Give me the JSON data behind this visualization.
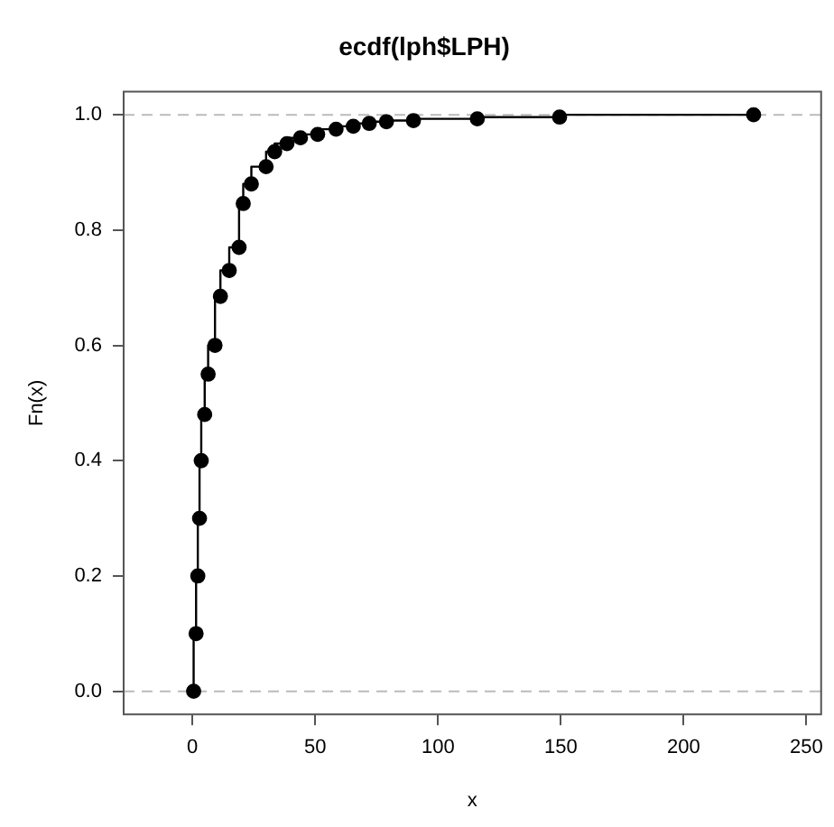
{
  "chart_data": {
    "type": "step",
    "title": "ecdf(lph$LPH)",
    "xlabel": "x",
    "ylabel": "Fn(x)",
    "xlim": [
      -28,
      256
    ],
    "xticks": [
      0,
      50,
      100,
      150,
      200,
      250
    ],
    "ylim": [
      -0.04,
      1.04
    ],
    "yticks": [
      {
        "value": 0,
        "label": "0.0"
      },
      0.2,
      0.4,
      0.6,
      0.8,
      {
        "value": 1,
        "label": "1.0"
      }
    ],
    "grid": false,
    "legend": false,
    "marker": "circle",
    "line_style": "solid",
    "ref_lines": [
      {
        "axis": "y",
        "value": 0,
        "color": "#bbbbbb",
        "line_style": "dashed"
      },
      {
        "axis": "y",
        "value": 1,
        "color": "#bbbbbb",
        "line_style": "dashed"
      }
    ],
    "series": [
      {
        "color": "#000000",
        "x": [
          0.5,
          1.5,
          2.2,
          2.9,
          3.6,
          5,
          6.4,
          9.2,
          11.4,
          15,
          19,
          20.7,
          24,
          30,
          33.5,
          38.5,
          44,
          51,
          58.5,
          65.5,
          72,
          79,
          90,
          116,
          149.5,
          228.5
        ],
        "values": [
          0,
          0.1,
          0.2,
          0.3,
          0.4,
          0.48,
          0.55,
          0.6,
          0.685,
          0.73,
          0.77,
          0.846,
          0.88,
          0.91,
          0.936,
          0.95,
          0.96,
          0.966,
          0.975,
          0.98,
          0.985,
          0.988,
          0.99,
          0.993,
          0.996,
          1.0
        ]
      }
    ]
  }
}
